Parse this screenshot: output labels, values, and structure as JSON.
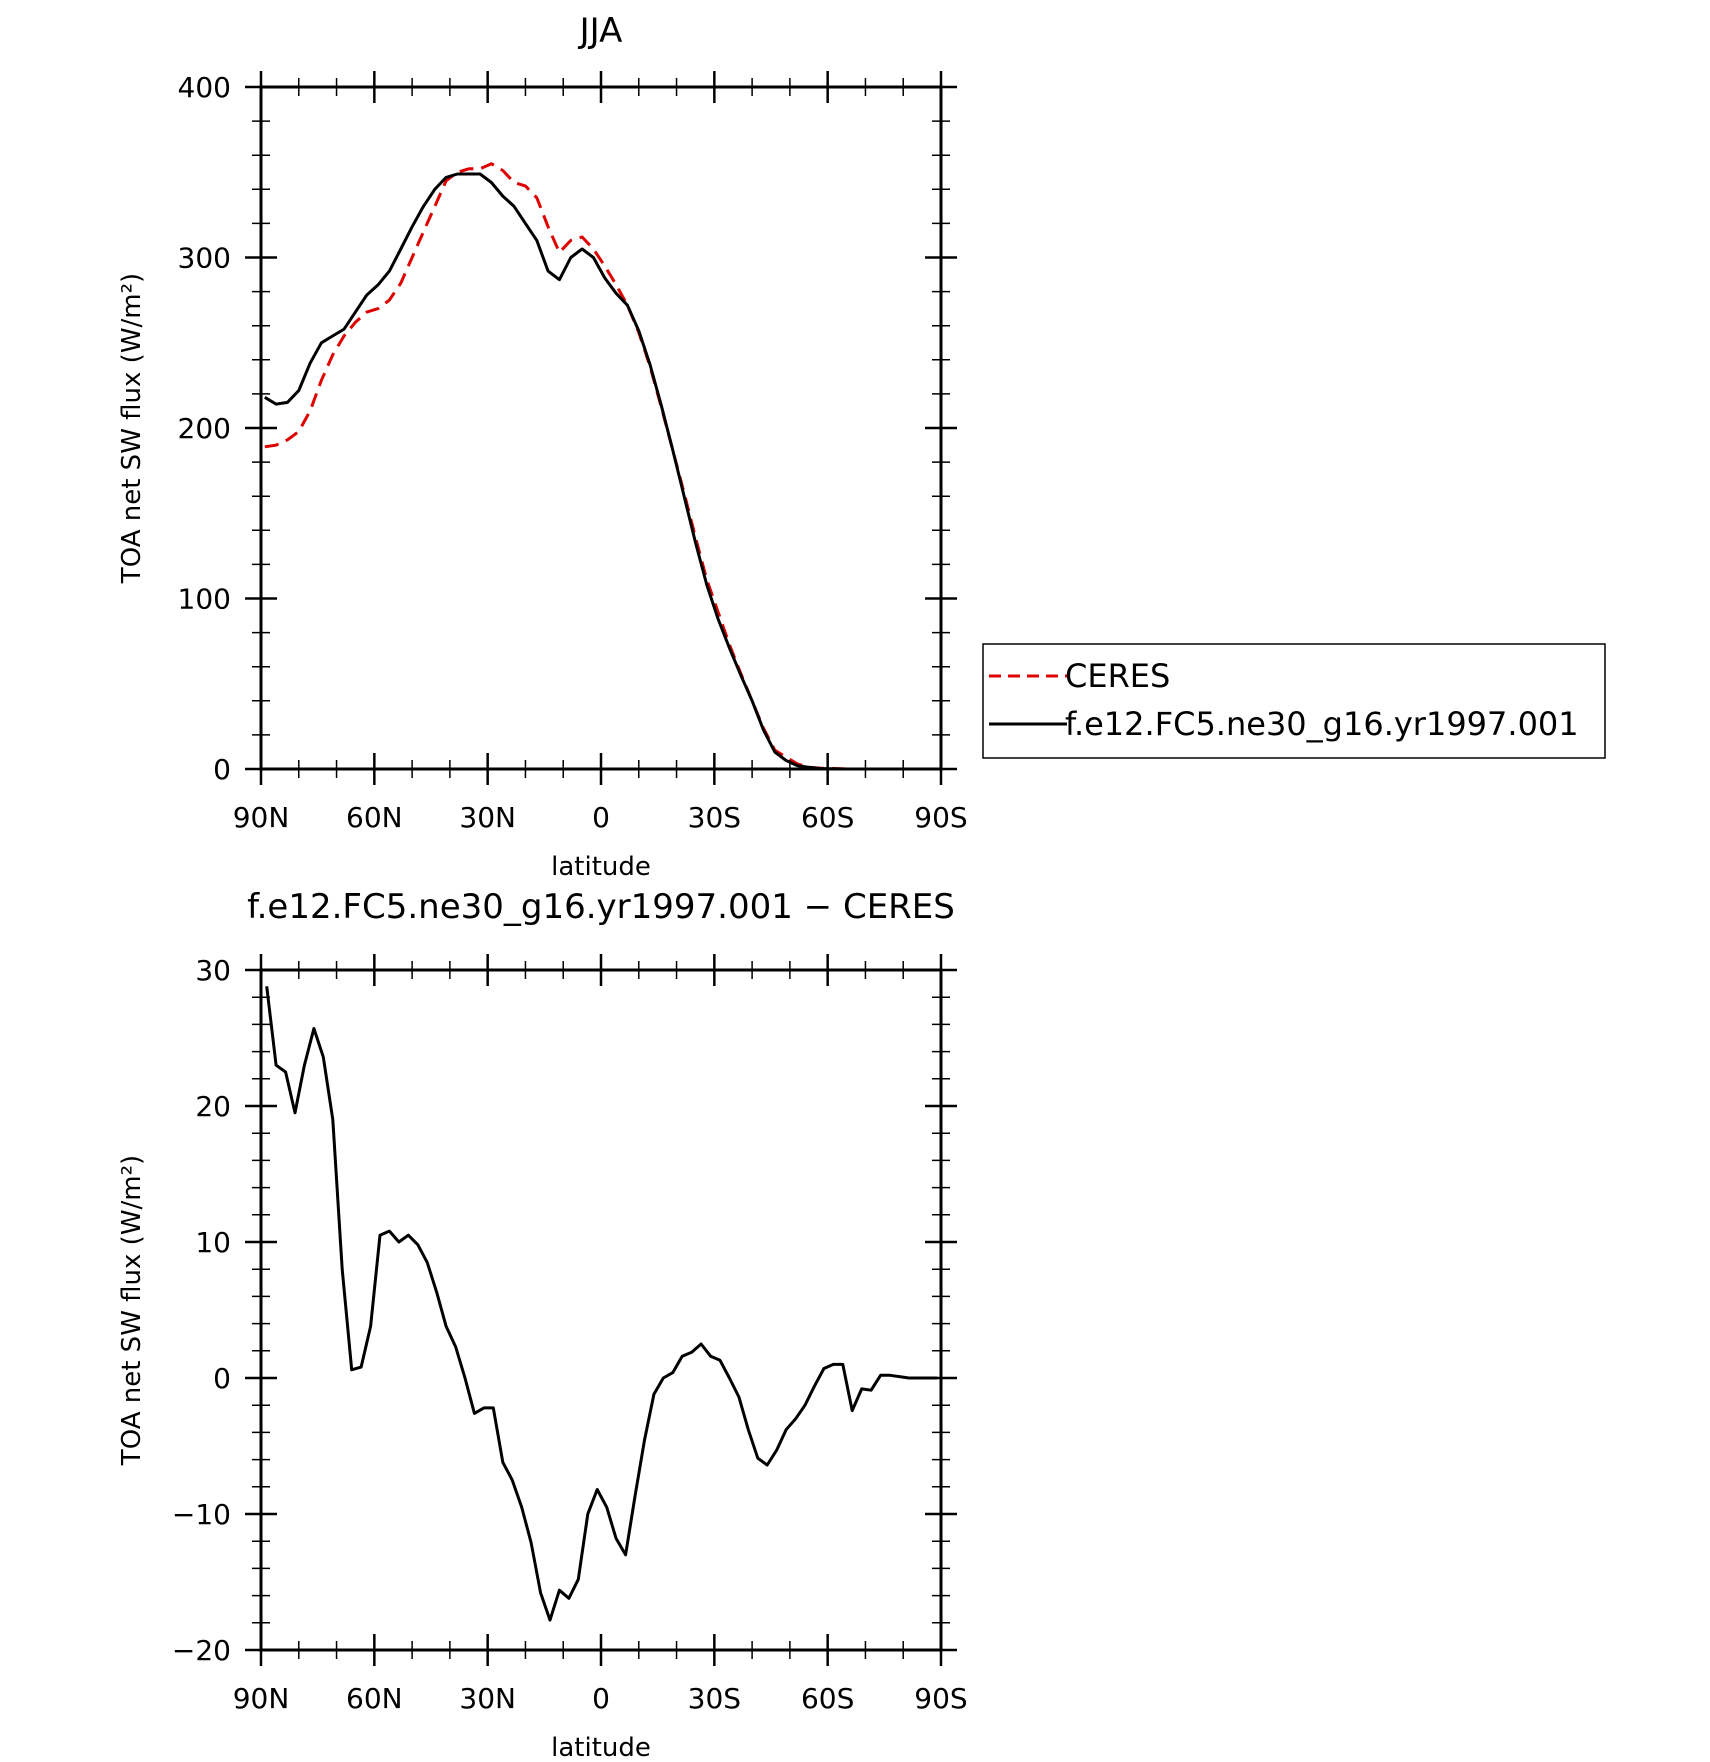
{
  "chart_data": [
    {
      "type": "line",
      "title": "JJA",
      "xlabel": "latitude",
      "ylabel": "TOA net SW flux (W/m²)",
      "xlim": [
        90,
        -90
      ],
      "ylim": [
        0,
        400
      ],
      "x_ticks": [
        90,
        60,
        30,
        0,
        -30,
        -60,
        -90
      ],
      "x_tick_labels": [
        "90N",
        "60N",
        "30N",
        "0",
        "30S",
        "60S",
        "90S"
      ],
      "y_ticks": [
        0,
        100,
        200,
        300,
        400
      ],
      "y_tick_labels": [
        "0",
        "100",
        "200",
        "300",
        "400"
      ],
      "legend": {
        "position": "right",
        "entries": [
          "CERES",
          "f.e12.FC5.ne30_g16.yr1997.001"
        ]
      },
      "series": [
        {
          "name": "CERES",
          "color": "#e00000",
          "dash": true,
          "x": [
            89,
            86,
            83,
            80,
            77,
            74,
            71,
            68,
            65,
            62,
            59,
            56,
            53,
            50,
            47,
            44,
            41,
            38,
            35,
            32,
            29,
            26,
            23,
            20,
            17,
            14,
            11,
            8,
            5,
            2,
            -1,
            -4,
            -7,
            -10,
            -13,
            -16,
            -19,
            -22,
            -25,
            -28,
            -31,
            -34,
            -37,
            -40,
            -43,
            -46,
            -49,
            -52,
            -55,
            -58,
            -61,
            -64,
            -67,
            -70,
            -73,
            -76,
            -79,
            -82,
            -85,
            -88,
            -89
          ],
          "y": [
            189,
            190,
            193,
            198,
            210,
            228,
            243,
            254,
            262,
            268,
            270,
            275,
            285,
            300,
            315,
            330,
            345,
            350,
            352,
            352,
            355,
            351,
            344,
            342,
            335,
            318,
            303,
            310,
            312,
            305,
            295,
            284,
            272,
            256,
            236,
            212,
            187,
            162,
            136,
            111,
            92,
            73,
            56,
            40,
            24,
            11,
            7,
            3,
            1,
            0.5,
            0.3,
            0.1,
            0,
            0,
            0,
            0,
            0,
            0,
            0,
            0,
            0
          ]
        },
        {
          "name": "f.e12.FC5.ne30_g16.yr1997.001",
          "color": "#000000",
          "dash": false,
          "x": [
            89,
            86,
            83,
            80,
            77,
            74,
            71,
            68,
            65,
            62,
            59,
            56,
            53,
            50,
            47,
            44,
            41,
            38,
            35,
            32,
            29,
            26,
            23,
            20,
            17,
            14,
            11,
            8,
            5,
            2,
            -1,
            -4,
            -7,
            -10,
            -13,
            -16,
            -19,
            -22,
            -25,
            -28,
            -31,
            -34,
            -37,
            -40,
            -43,
            -46,
            -49,
            -52,
            -55,
            -58,
            -61,
            -64,
            -67,
            -70,
            -73,
            -76,
            -79,
            -82,
            -85,
            -88,
            -89
          ],
          "y": [
            218,
            214,
            215,
            222,
            238,
            250,
            254,
            258,
            268,
            278,
            284,
            292,
            305,
            318,
            330,
            340,
            347,
            349,
            349,
            349,
            344,
            336,
            330,
            320,
            310,
            292,
            287,
            300,
            305,
            300,
            288,
            279,
            272,
            257,
            237,
            213,
            187,
            160,
            133,
            108,
            88,
            71,
            55,
            40,
            23,
            10,
            5,
            2,
            1,
            0.3,
            0.1,
            0,
            0,
            0,
            0,
            0,
            0,
            0,
            0,
            0,
            0
          ]
        }
      ]
    },
    {
      "type": "line",
      "title": "f.e12.FC5.ne30_g16.yr1997.001 − CERES",
      "xlabel": "latitude",
      "ylabel": "TOA net SW flux (W/m²)",
      "xlim": [
        90,
        -90
      ],
      "ylim": [
        -20,
        30
      ],
      "x_ticks": [
        90,
        60,
        30,
        0,
        -30,
        -60,
        -90
      ],
      "x_tick_labels": [
        "90N",
        "60N",
        "30N",
        "0",
        "30S",
        "60S",
        "90S"
      ],
      "y_ticks": [
        -20,
        -10,
        0,
        10,
        20,
        30
      ],
      "y_tick_labels": [
        "−20",
        "−10",
        "0",
        "10",
        "20",
        "30"
      ],
      "series": [
        {
          "color": "#000000",
          "dash": false,
          "x": [
            88.5,
            86,
            83.5,
            81,
            78.5,
            76,
            73.5,
            71,
            68.5,
            66,
            63.5,
            61,
            58.5,
            56,
            53.5,
            51,
            48.5,
            46,
            43.5,
            41,
            38.5,
            36,
            33.5,
            31,
            28.5,
            26,
            23.5,
            21,
            18.5,
            16,
            13.5,
            11,
            8.5,
            6,
            3.5,
            1,
            -1.5,
            -4,
            -6.5,
            -9,
            -11.5,
            -14,
            -16.5,
            -19,
            -21.5,
            -24,
            -26.5,
            -29,
            -31.5,
            -34,
            -36.5,
            -39,
            -41.5,
            -44,
            -46.5,
            -49,
            -51.5,
            -54,
            -56.5,
            -59,
            -61.5,
            -64,
            -66.5,
            -69,
            -71.5,
            -74,
            -76.5,
            -79,
            -81.5,
            -84,
            -86.5,
            -89
          ],
          "y": [
            28.8,
            23.0,
            22.5,
            19.5,
            23.0,
            25.7,
            23.6,
            19.0,
            8.0,
            0.6,
            0.8,
            3.8,
            10.5,
            10.8,
            10.0,
            10.5,
            9.8,
            8.5,
            6.3,
            3.8,
            2.3,
            0,
            -2.6,
            -2.2,
            -2.2,
            -6.2,
            -7.5,
            -9.5,
            -12.1,
            -15.8,
            -17.8,
            -15.6,
            -16.2,
            -14.8,
            -10.0,
            -8.2,
            -9.5,
            -11.8,
            -13.0,
            -8.7,
            -4.6,
            -1.2,
            0,
            0.4,
            1.6,
            1.9,
            2.5,
            1.6,
            1.3,
            0,
            -1.4,
            -3.8,
            -5.9,
            -6.4,
            -5.3,
            -3.8,
            -3.0,
            -2.0,
            -0.6,
            0.7,
            1.0,
            1.0,
            -2.4,
            -0.8,
            -0.9,
            0.2,
            0.2,
            0.1,
            0,
            0,
            0,
            0
          ]
        }
      ]
    }
  ]
}
